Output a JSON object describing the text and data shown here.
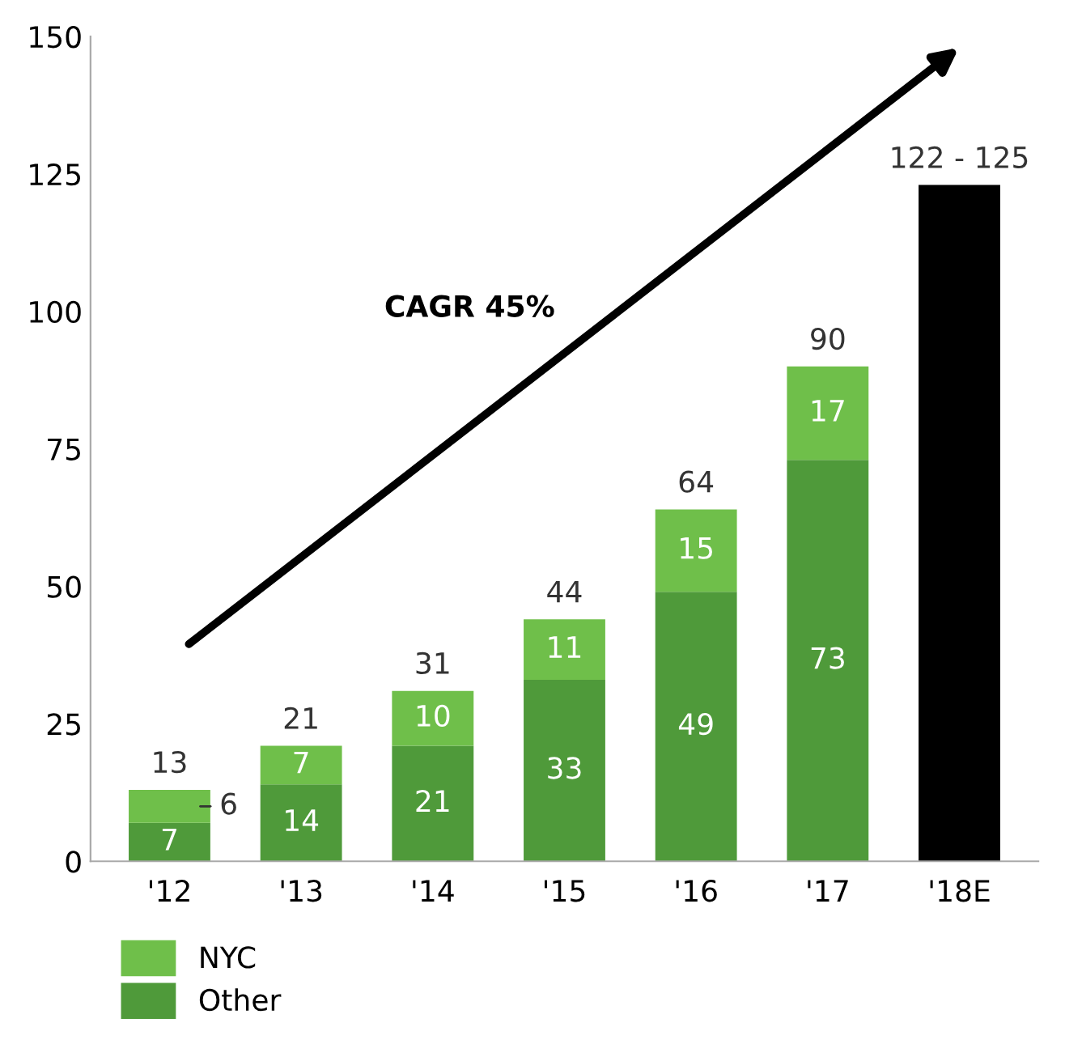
{
  "chart_data": {
    "type": "bar",
    "stacked": true,
    "categories": [
      "'12",
      "'13",
      "'14",
      "'15",
      "'16",
      "'17",
      "'18E"
    ],
    "series": [
      {
        "name": "Other",
        "color": "#4f9a3a",
        "values": [
          7,
          14,
          21,
          33,
          49,
          73,
          null
        ],
        "value_labels": [
          "7",
          "14",
          "21",
          "33",
          "49",
          "73",
          null
        ]
      },
      {
        "name": "NYC",
        "color": "#6fbf4a",
        "values": [
          6,
          7,
          10,
          11,
          15,
          17,
          null
        ],
        "value_labels": [
          "6",
          "7",
          "10",
          "11",
          "15",
          "17",
          null
        ]
      },
      {
        "color": "#000000",
        "values": [
          null,
          null,
          null,
          null,
          null,
          null,
          123
        ]
      }
    ],
    "totals": [
      "13",
      "21",
      "31",
      "44",
      "64",
      "90",
      "122 - 125"
    ],
    "ylim": [
      0,
      150
    ],
    "yticks": [
      0,
      25,
      50,
      75,
      100,
      125,
      150
    ],
    "grid": false,
    "legend": "bottom left",
    "annotations": [
      "CAGR 45%"
    ]
  }
}
